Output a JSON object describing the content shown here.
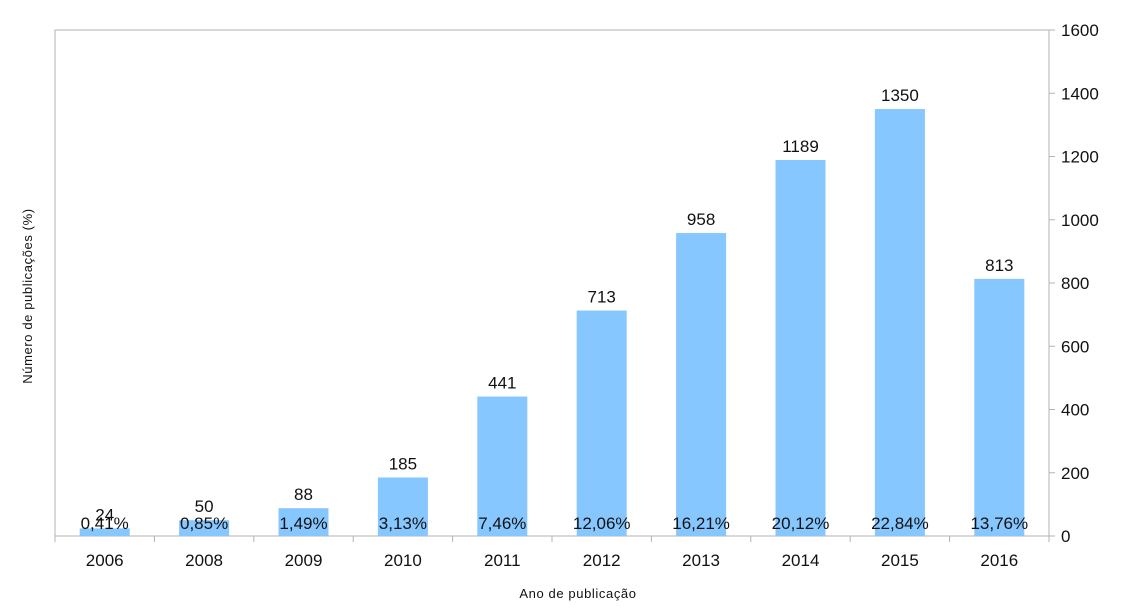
{
  "chart_data": {
    "type": "bar",
    "title": "",
    "xlabel": "Ano de publicação",
    "ylabel": "Número de publicações (%)",
    "categories": [
      "2006",
      "2008",
      "2009",
      "2010",
      "2011",
      "2012",
      "2013",
      "2014",
      "2015",
      "2016"
    ],
    "values": [
      24,
      50,
      88,
      185,
      441,
      713,
      958,
      1189,
      1350,
      813
    ],
    "percent_labels": [
      "0,41%",
      "0,85%",
      "1,49%",
      "3,13%",
      "7,46%",
      "12,06%",
      "16,21%",
      "20,12%",
      "22,84%",
      "13,76%"
    ],
    "ylim": [
      0,
      1600
    ],
    "yticks": [
      0,
      200,
      400,
      600,
      800,
      1000,
      1200,
      1400,
      1600
    ],
    "y_axis_side": "right",
    "grid": false,
    "legend": "none",
    "colors": {
      "bar": "#87c7ff",
      "axis": "#b3b3b3",
      "text": "#111111"
    }
  }
}
